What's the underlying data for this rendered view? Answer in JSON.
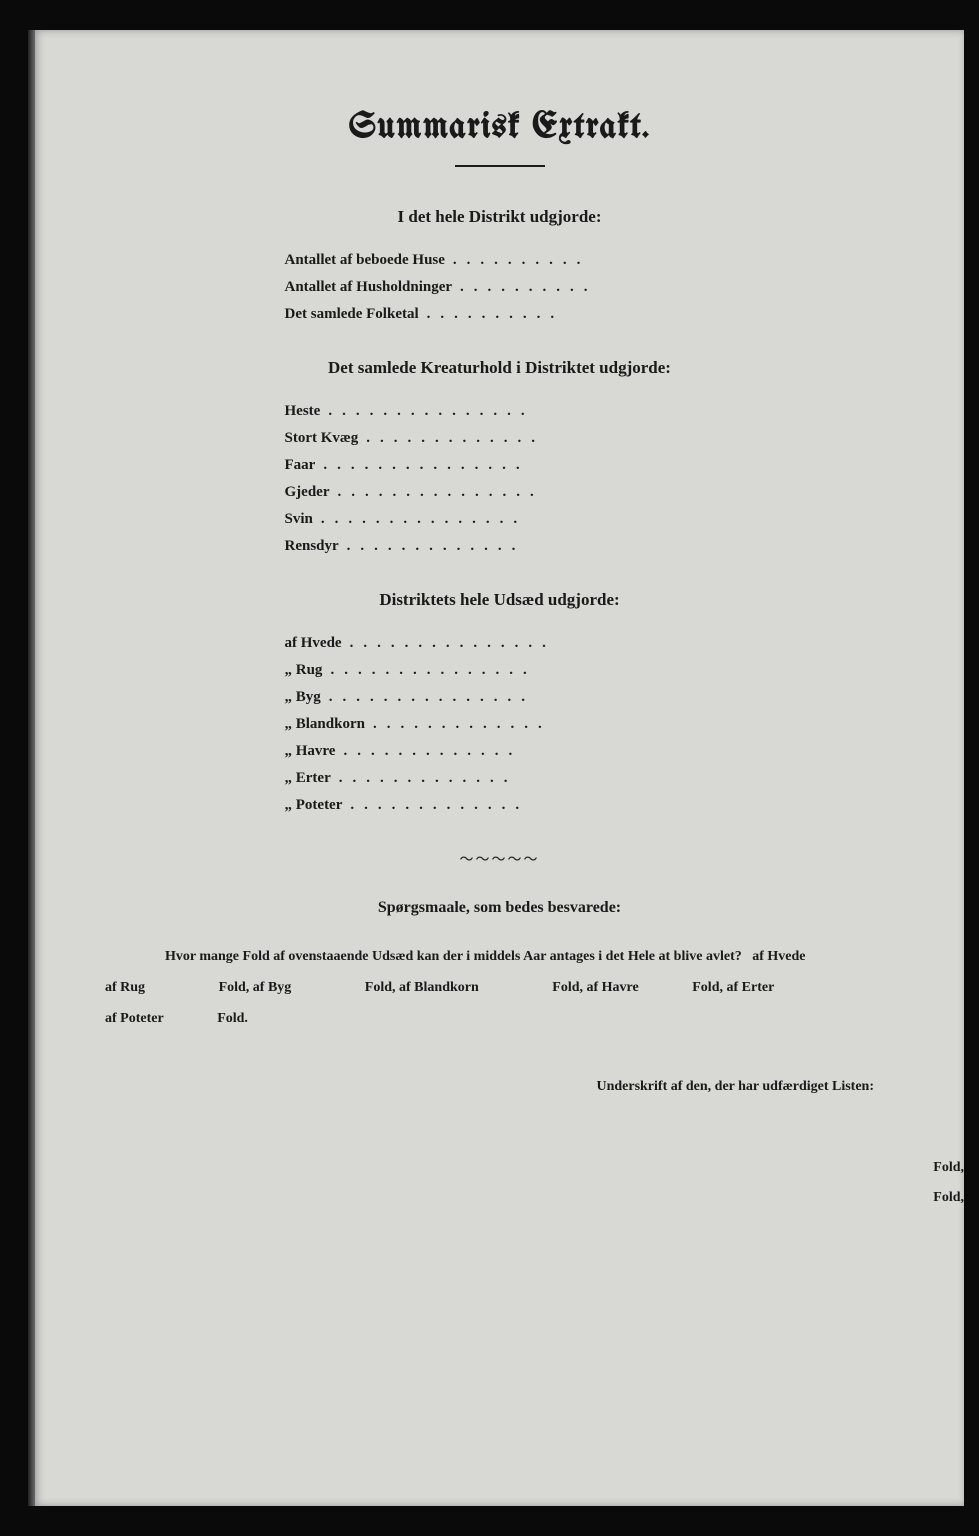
{
  "title": "Summarisk Extrakt.",
  "section1": {
    "heading": "I det hele Distrikt udgjorde:",
    "items": [
      "Antallet af beboede Huse",
      "Antallet af Husholdninger",
      "Det samlede Folketal"
    ]
  },
  "section2": {
    "heading": "Det samlede Kreaturhold i Distriktet udgjorde:",
    "items": [
      "Heste",
      "Stort Kvæg",
      "Faar",
      "Gjeder",
      "Svin",
      "Rensdyr"
    ]
  },
  "section3": {
    "heading": "Distriktets hele Udsæd udgjorde:",
    "items": [
      "af Hvede",
      "„ Rug",
      "„ Byg",
      "„ Blandkorn",
      "„ Havre",
      "„ Erter",
      "„ Poteter"
    ]
  },
  "question": {
    "heading": "Spørgsmaale, som bedes besvarede:",
    "intro": "Hvor mange Fold af ovenstaaende Udsæd kan der i middels Aar antages i det Hele at blive avlet?",
    "parts": [
      "af Hvede",
      "af Rug",
      "Fold, af Byg",
      "Fold, af Blandkorn",
      "Fold, af Havre",
      "Fold, af Erter",
      "af Poteter",
      "Fold."
    ],
    "fold_label": "Fold,"
  },
  "signature": "Underskrift af den, der har udfærdiget Listen:",
  "colors": {
    "page_bg": "#d8d8d4",
    "text": "#1a1a1a",
    "outer_bg": "#0a0a0a"
  }
}
